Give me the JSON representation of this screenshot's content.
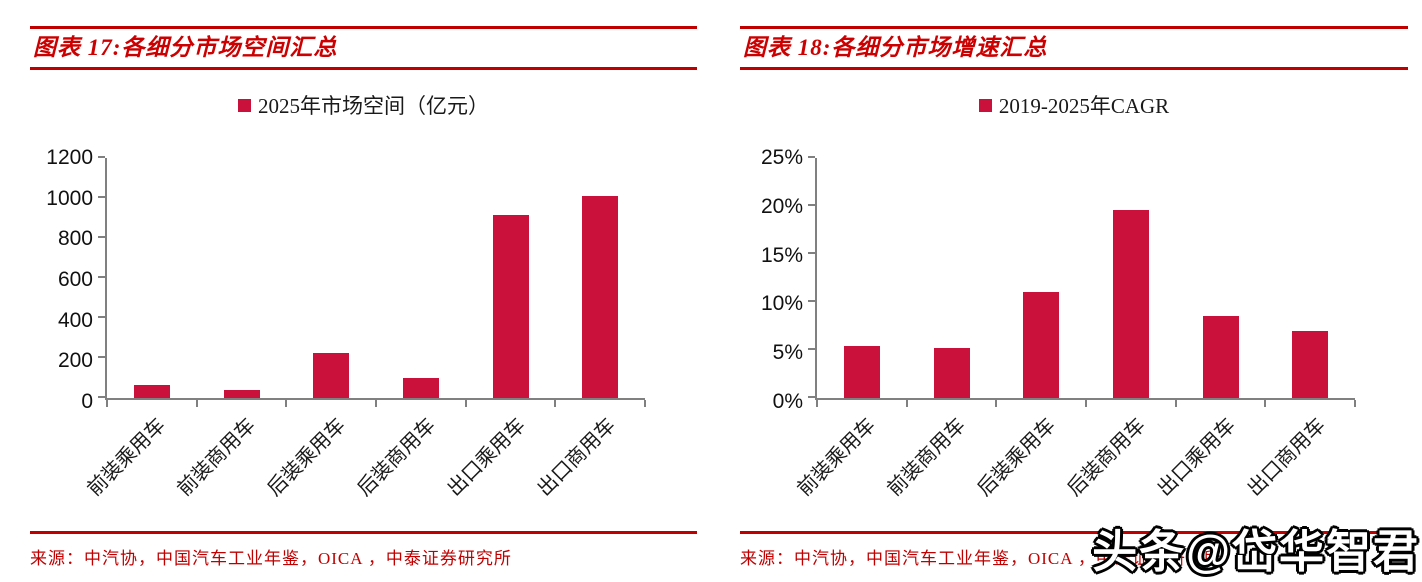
{
  "colors": {
    "bar": "#C9113C",
    "title_red": "#CC0000",
    "rule_red": "#C00000",
    "source_red": "#C00000",
    "axis_gray": "#808080"
  },
  "watermark": "头条@岱华智君",
  "chart_data": [
    {
      "type": "bar",
      "title": "图表 17:各细分市场空间汇总",
      "legend": "2025年市场空间（亿元）",
      "legend_position": "top",
      "grid": false,
      "categories": [
        "前装乘用车",
        "前装商用车",
        "后装乘用车",
        "后装商用车",
        "出口乘用车",
        "出口商用车"
      ],
      "values": [
        65,
        38,
        225,
        100,
        915,
        1010
      ],
      "xlabel": "",
      "ylabel": "",
      "ylim": [
        0,
        1200
      ],
      "yticks": [
        0,
        200,
        400,
        600,
        800,
        1000,
        1200
      ],
      "ytick_labels": [
        "0",
        "200",
        "400",
        "600",
        "800",
        "1000",
        "1200"
      ],
      "source": "来源：中汽协，中国汽车工业年鉴，OICA ，中泰证券研究所"
    },
    {
      "type": "bar",
      "title": "图表 18:各细分市场增速汇总",
      "legend": "2019-2025年CAGR",
      "legend_position": "top",
      "grid": false,
      "categories": [
        "前装乘用车",
        "前装商用车",
        "后装乘用车",
        "后装商用车",
        "出口乘用车",
        "出口商用车"
      ],
      "values": [
        5.4,
        5.2,
        11,
        19.6,
        8.5,
        7
      ],
      "xlabel": "",
      "ylabel": "",
      "ylim": [
        0,
        25
      ],
      "yticks": [
        0,
        5,
        10,
        15,
        20,
        25
      ],
      "ytick_labels": [
        "0%",
        "5%",
        "10%",
        "15%",
        "20%",
        "25%"
      ],
      "source": "来源：中汽协，中国汽车工业年鉴，OICA ，中泰证券研究所"
    }
  ]
}
